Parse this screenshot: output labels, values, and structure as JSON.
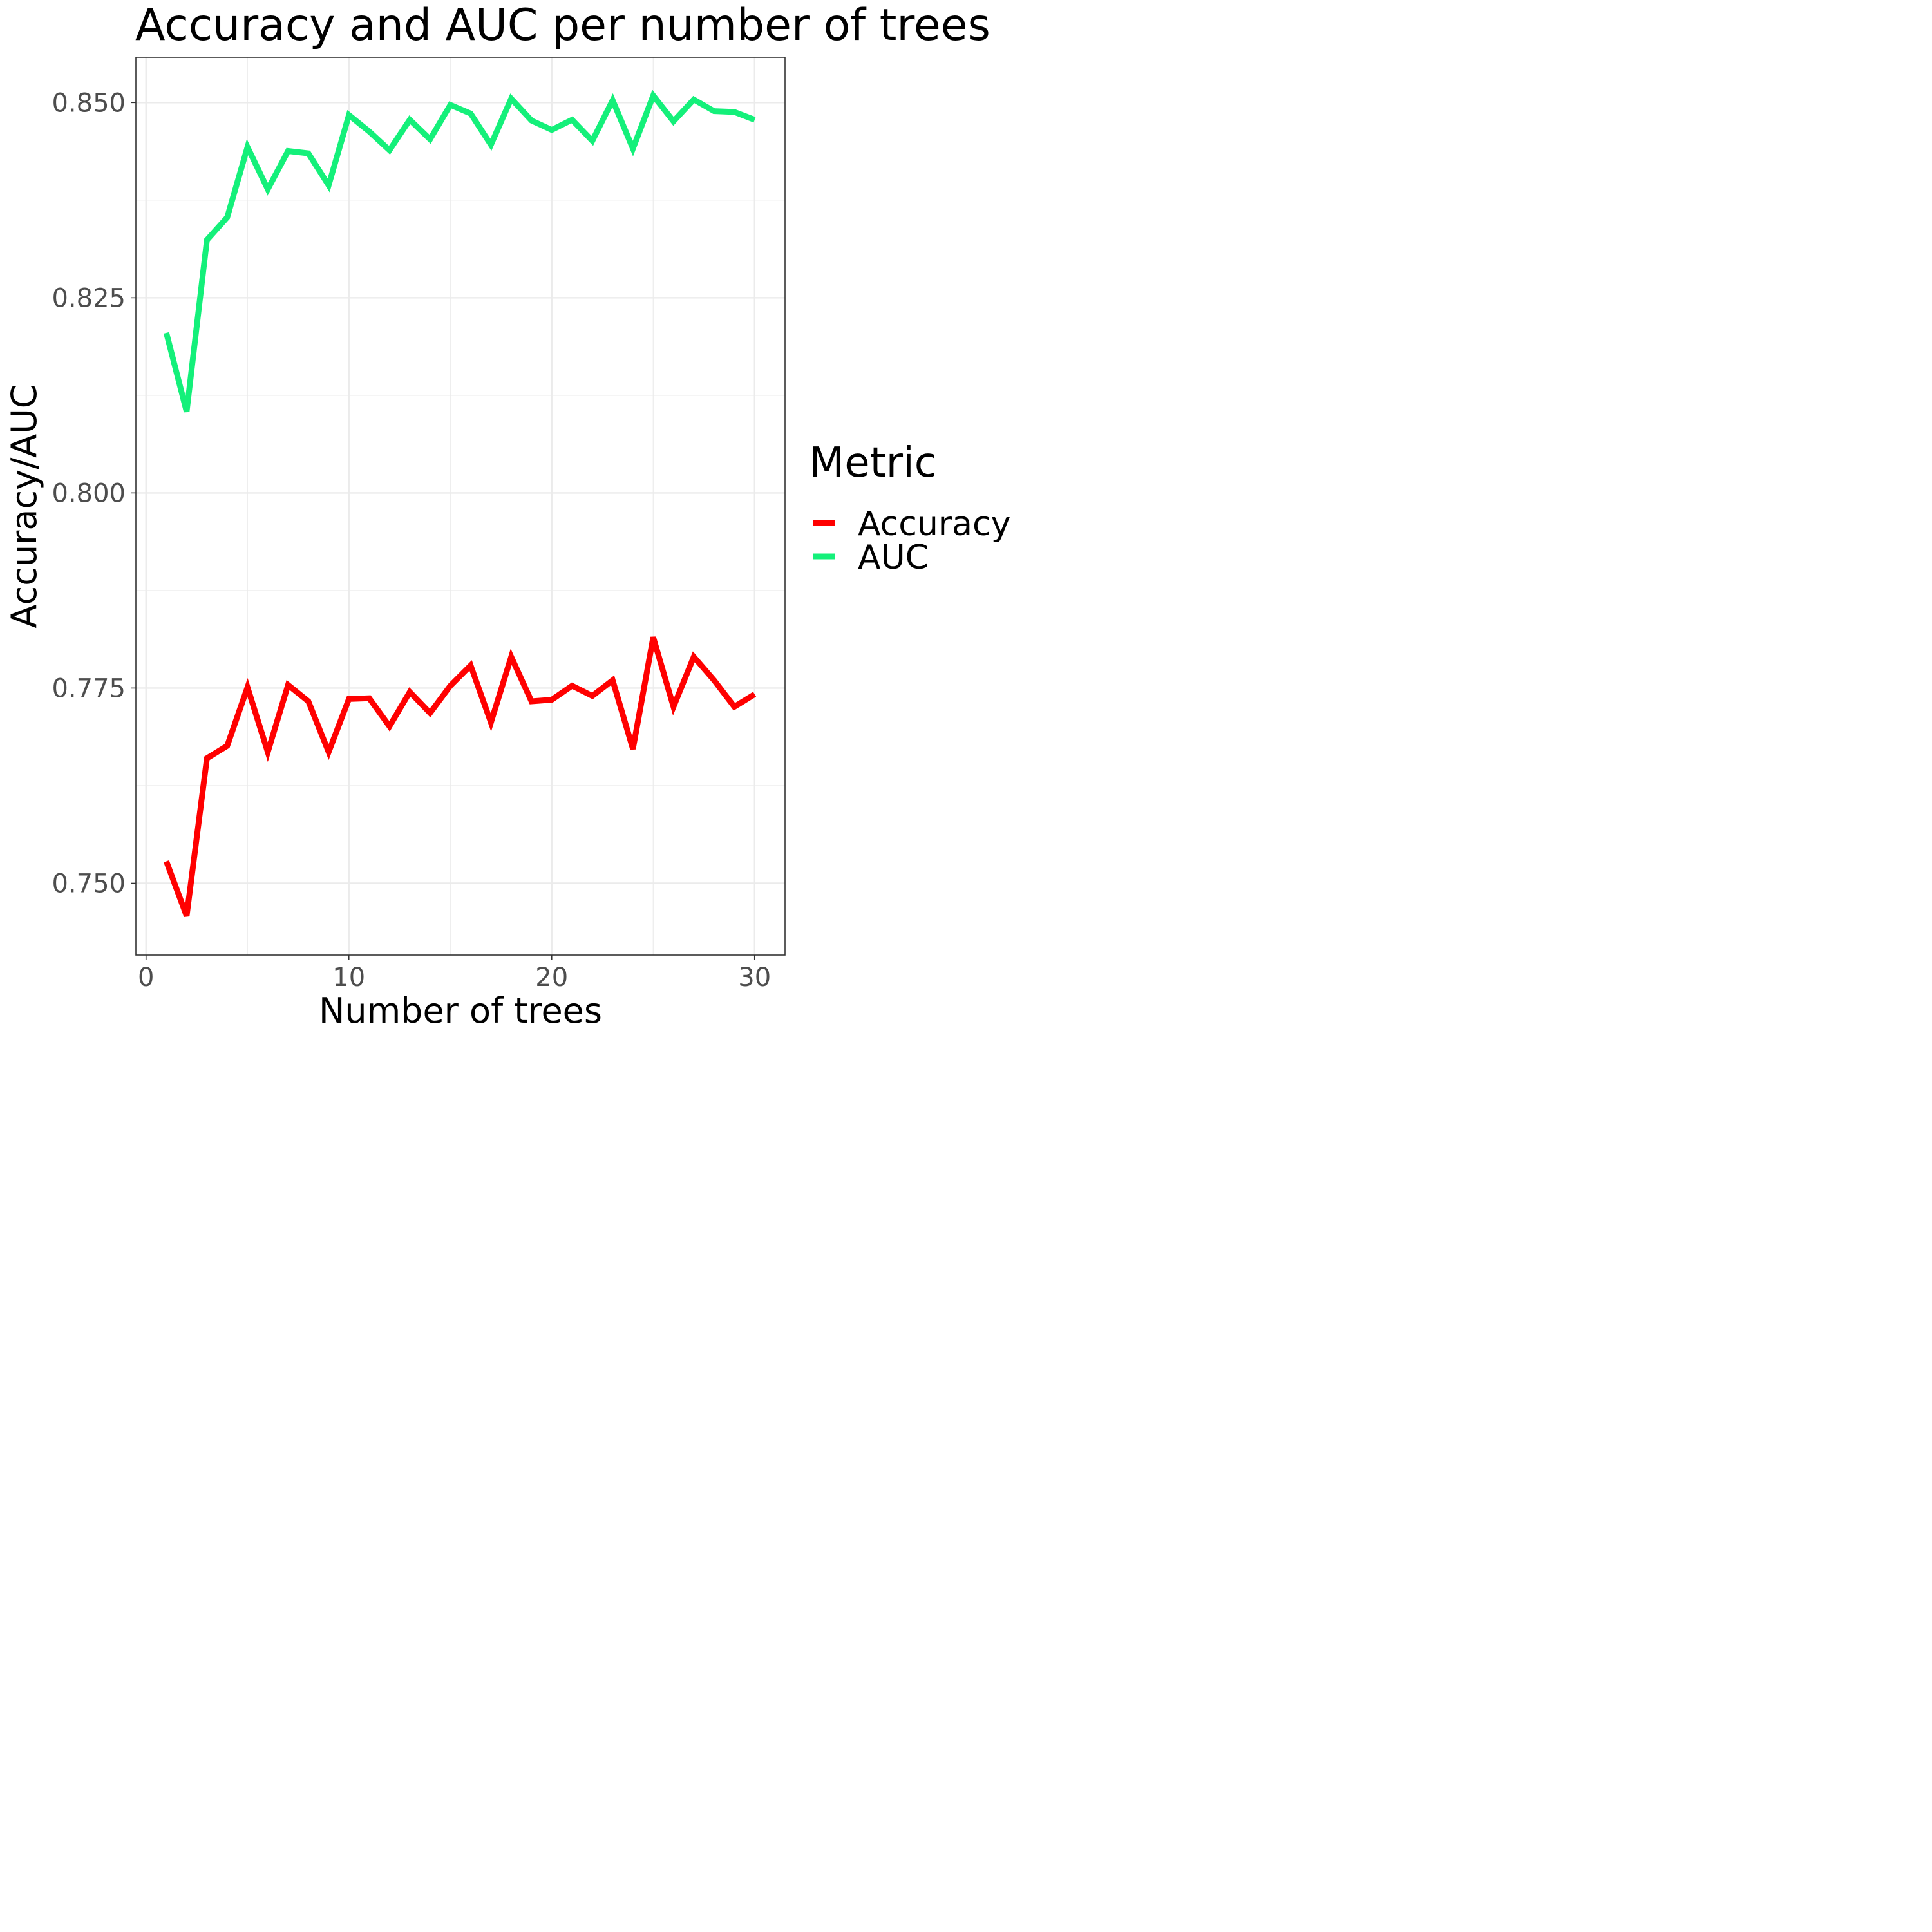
{
  "chart_data": {
    "type": "line",
    "title": "Accuracy and AUC per number of trees",
    "xlabel": "Number of trees",
    "ylabel": "Accuracy/AUC",
    "xlim": [
      -0.5,
      31.5
    ],
    "ylim": [
      0.7408,
      0.8558
    ],
    "x_ticks": [
      0,
      10,
      20,
      30
    ],
    "x_tick_labels": [
      "0",
      "10",
      "20",
      "30"
    ],
    "y_ticks": [
      0.75,
      0.775,
      0.8,
      0.825,
      0.85
    ],
    "y_tick_labels": [
      "0.750",
      "0.775",
      "0.800",
      "0.825",
      "0.850"
    ],
    "grid": true,
    "legend": {
      "title": "Metric",
      "position": "right"
    },
    "x": [
      1,
      2,
      3,
      4,
      5,
      6,
      7,
      8,
      9,
      10,
      11,
      12,
      13,
      14,
      15,
      16,
      17,
      18,
      19,
      20,
      21,
      22,
      23,
      24,
      25,
      26,
      27,
      28,
      29,
      30
    ],
    "series": [
      {
        "name": "Accuracy",
        "color": "#ff0000",
        "values": [
          0.7528,
          0.7458,
          0.766,
          0.7676,
          0.7751,
          0.7668,
          0.7754,
          0.7733,
          0.7668,
          0.7736,
          0.7737,
          0.7701,
          0.7745,
          0.7718,
          0.7753,
          0.7779,
          0.7706,
          0.779,
          0.7733,
          0.7735,
          0.7753,
          0.774,
          0.776,
          0.7672,
          0.7815,
          0.7726,
          0.779,
          0.776,
          0.7726,
          0.7742
        ]
      },
      {
        "name": "AUC",
        "color": "#14f07a",
        "values": [
          0.8205,
          0.8104,
          0.8324,
          0.8353,
          0.8443,
          0.8389,
          0.8438,
          0.8435,
          0.8394,
          0.8484,
          0.8463,
          0.8439,
          0.8478,
          0.8453,
          0.8497,
          0.8486,
          0.8446,
          0.8505,
          0.8477,
          0.8465,
          0.8478,
          0.8451,
          0.8503,
          0.8441,
          0.8509,
          0.8476,
          0.8504,
          0.8489,
          0.8488,
          0.8478
        ]
      }
    ]
  }
}
